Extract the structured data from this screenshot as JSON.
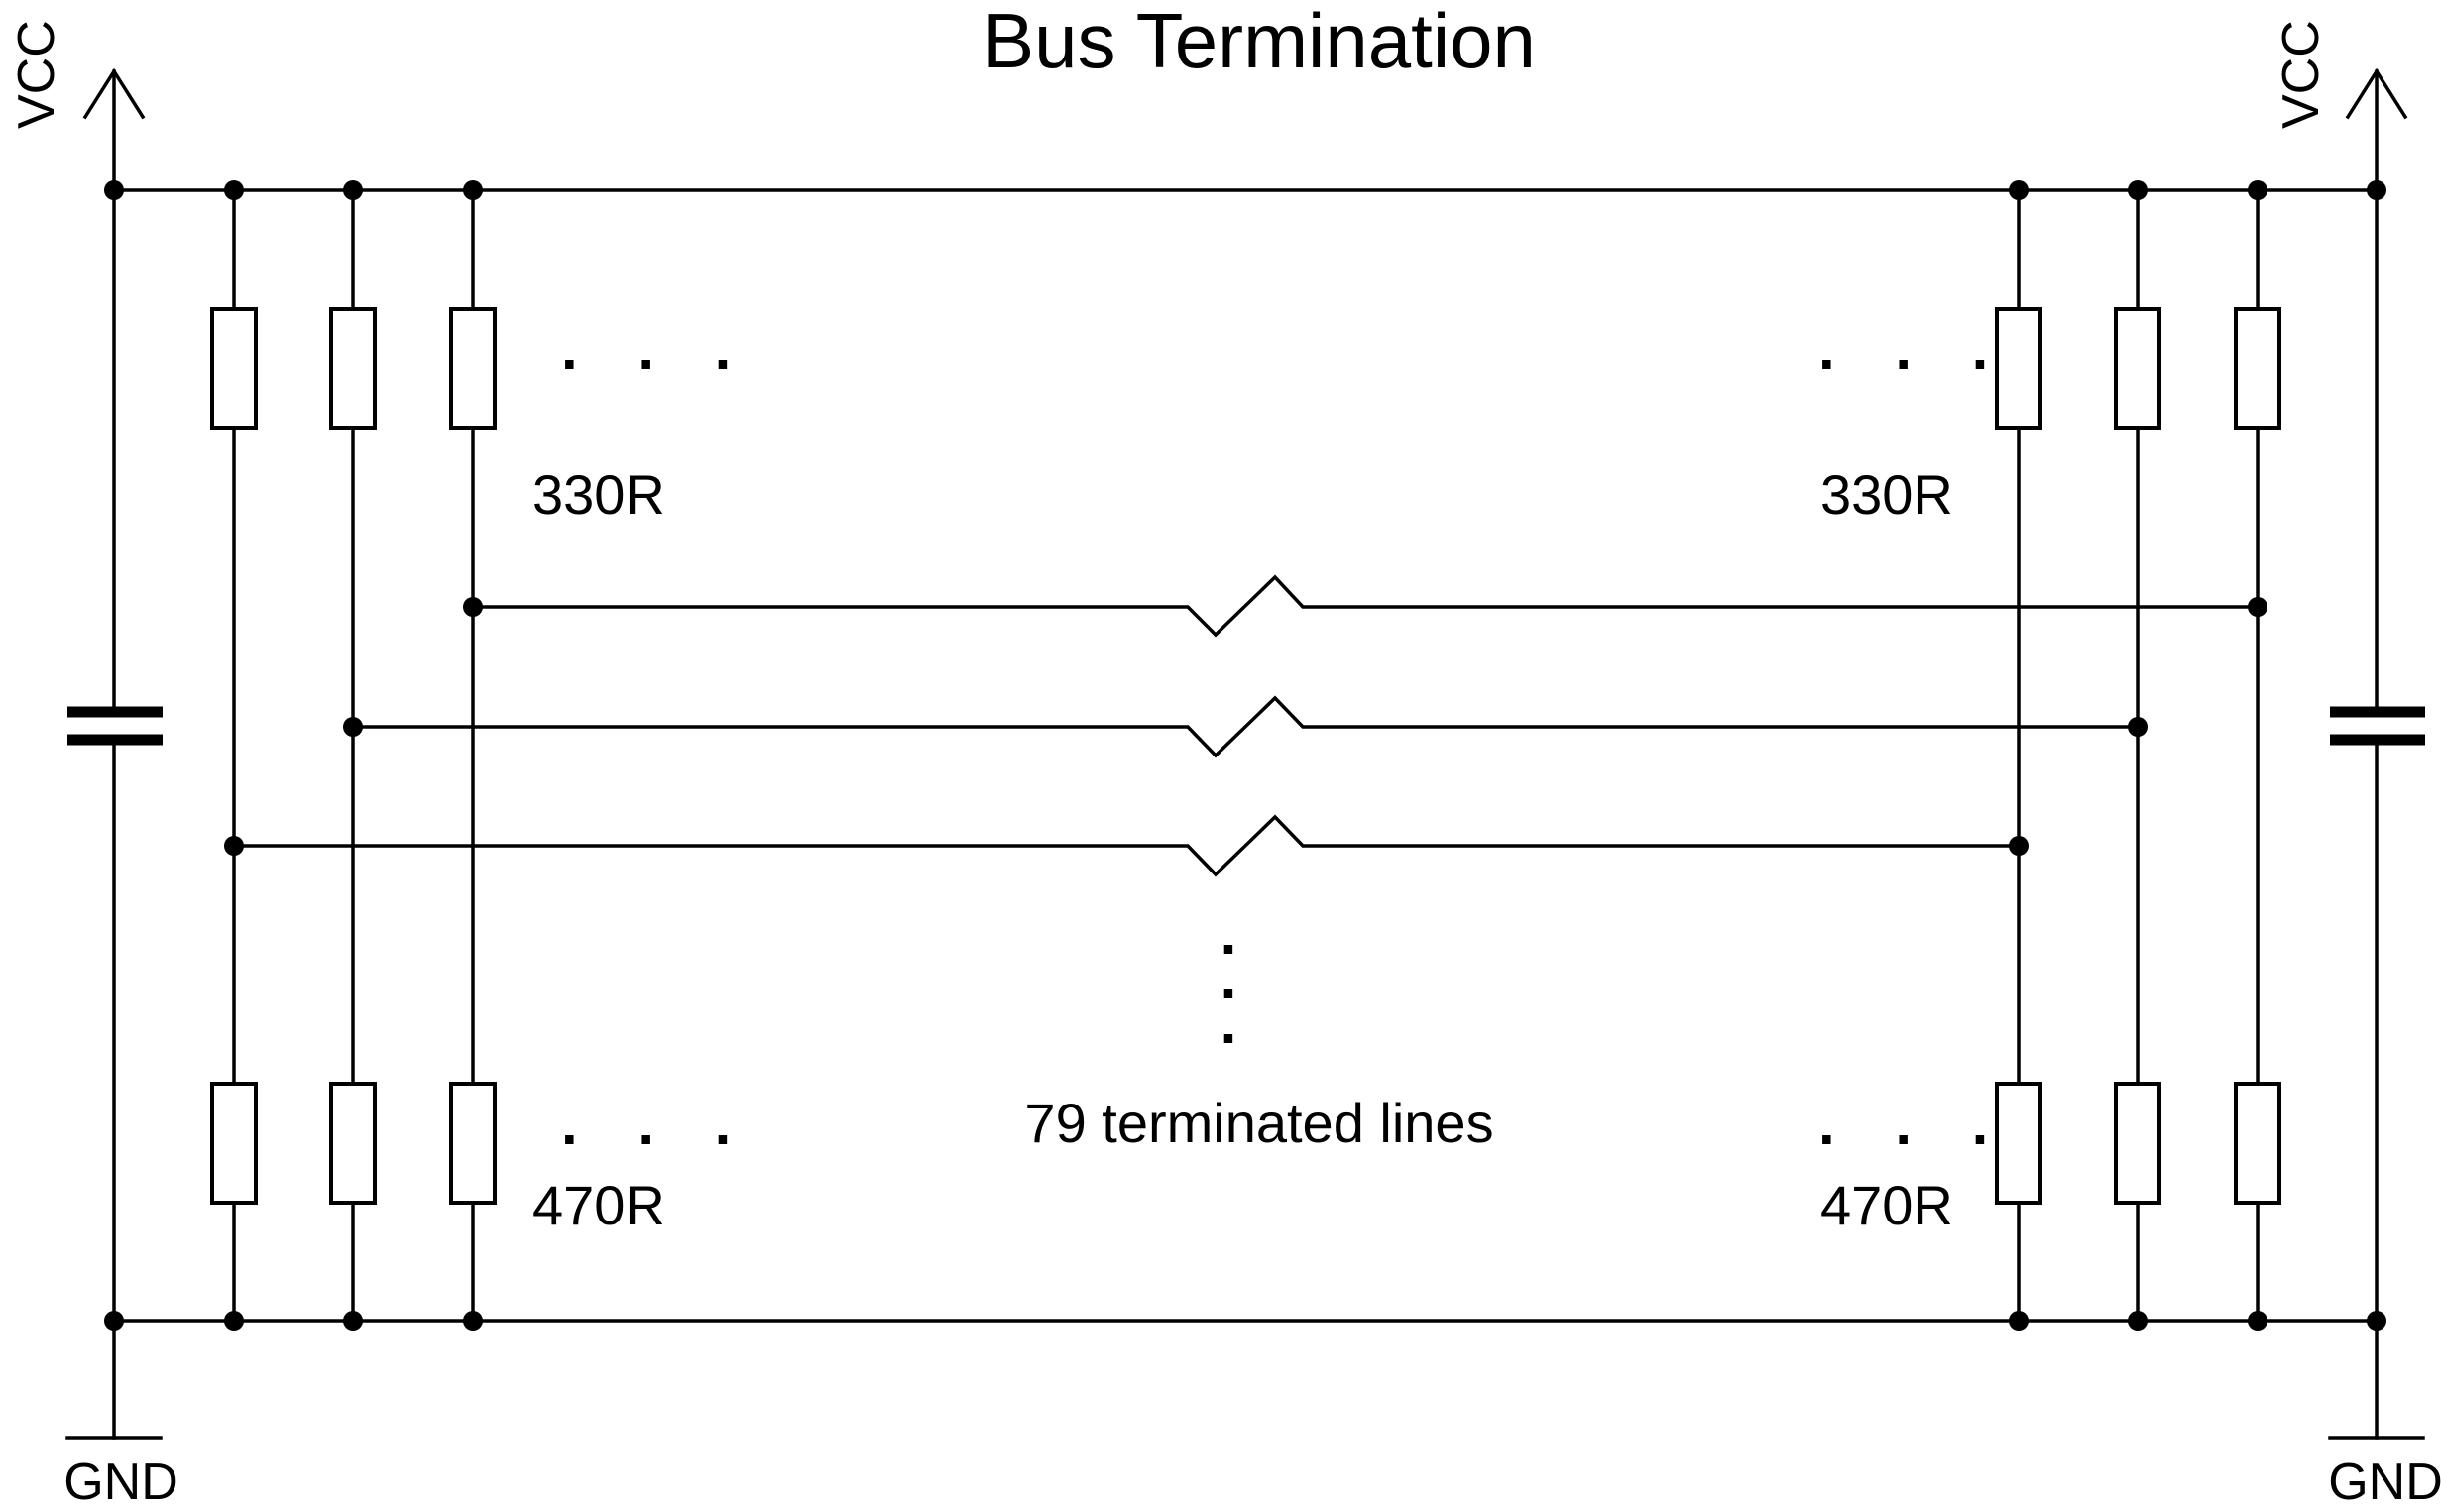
{
  "title": "Bus Termination",
  "power": {
    "supply_label": "VCC",
    "ground_label": "GND"
  },
  "resistors": {
    "pullup_value": "330R",
    "pulldown_value": "470R"
  },
  "ellipsis": ". . .",
  "vertical_ellipsis_dot": ".",
  "note": "79 terminated lines"
}
